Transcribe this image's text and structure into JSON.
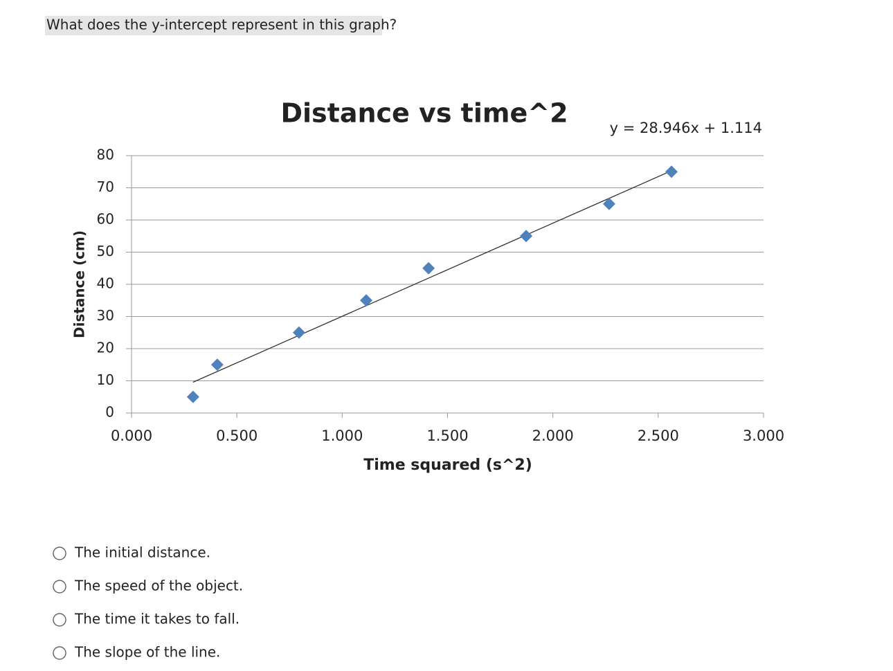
{
  "question": "What does the y-intercept represent in this graph?",
  "chart_data": {
    "type": "scatter",
    "title": "Distance vs time^2",
    "x_label": "Time squared (s^2)",
    "y_label": "Distance (cm)",
    "x": [
      0.292,
      0.407,
      0.795,
      1.114,
      1.41,
      1.873,
      2.267,
      2.563
    ],
    "series": [
      {
        "color": "#4f81bd",
        "values": [
          5,
          15,
          25,
          35,
          45,
          55,
          65,
          75
        ]
      }
    ],
    "trendline": {
      "equation": "y = 28.946x + 1.114",
      "slope": 28.946,
      "intercept": 1.114
    },
    "xlim": [
      0,
      3
    ],
    "ylim": [
      0,
      80
    ],
    "xticks": [
      {
        "value": 0,
        "label": "0.000"
      },
      {
        "value": 0.5,
        "label": "0.500"
      },
      {
        "value": 1,
        "label": "1.000"
      },
      {
        "value": 1.5,
        "label": "1.500"
      },
      {
        "value": 2,
        "label": "2.000"
      },
      {
        "value": 2.5,
        "label": "2.500"
      },
      {
        "value": 3,
        "label": "3.000"
      }
    ],
    "yticks": [
      0,
      10,
      20,
      30,
      40,
      50,
      60,
      70,
      80
    ],
    "grid": true
  },
  "options": [
    "The initial distance.",
    "The speed of the object.",
    "The time it takes to fall.",
    "The slope of the line."
  ]
}
